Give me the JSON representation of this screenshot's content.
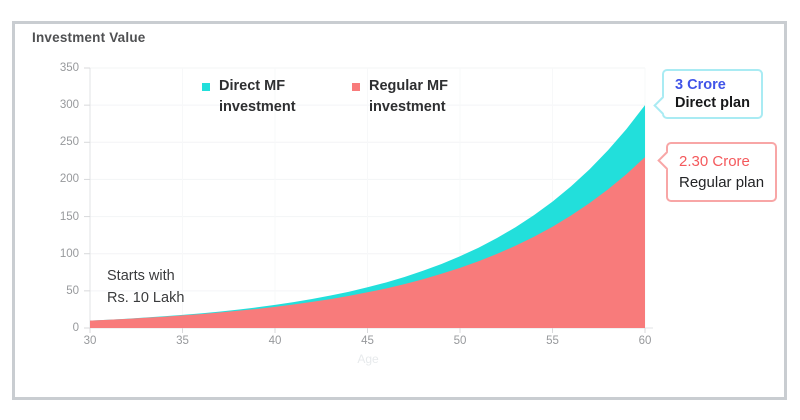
{
  "title": "Investment Value",
  "legend": {
    "items": [
      {
        "label": "Direct MF investment",
        "color": "#22dfdb"
      },
      {
        "label": "Regular MF investment",
        "color": "#f87b7b"
      }
    ]
  },
  "annotation": {
    "line1": "Starts with",
    "line2": "Rs. 10 Lakh"
  },
  "callouts": [
    {
      "value": "3 Crore",
      "plan": "Direct plan",
      "value_color": "#4154e8",
      "border_color": "#a9ebf3"
    },
    {
      "value": "2.30 Crore",
      "plan": "Regular plan",
      "value_color": "#f4595c",
      "border_color": "#f8a6a6"
    }
  ],
  "chart_data": {
    "type": "area",
    "title": "Investment Value",
    "xlabel": "Age",
    "ylabel": "",
    "xlim": [
      30,
      60
    ],
    "ylim": [
      0,
      350
    ],
    "x_ticks": [
      30,
      35,
      40,
      45,
      50,
      55,
      60
    ],
    "y_ticks": [
      0,
      50,
      100,
      150,
      200,
      250,
      300,
      350
    ],
    "grid": "faint",
    "legend_position": "top",
    "x": [
      30,
      31,
      32,
      33,
      34,
      35,
      36,
      37,
      38,
      39,
      40,
      41,
      42,
      43,
      44,
      45,
      46,
      47,
      48,
      49,
      50,
      51,
      52,
      53,
      54,
      55,
      56,
      57,
      58,
      59,
      60
    ],
    "series": [
      {
        "name": "Direct MF investment",
        "color": "#22dfdb",
        "final_label": "3 Crore",
        "values": [
          10,
          11.2,
          12.5,
          14.1,
          15.7,
          17.6,
          19.7,
          22.1,
          24.8,
          27.7,
          31.1,
          34.8,
          39.0,
          43.7,
          48.9,
          54.8,
          61.3,
          68.7,
          77.0,
          86.2,
          96.6,
          108.1,
          121.1,
          135.7,
          152.0,
          170.2,
          190.6,
          213.5,
          239.2,
          267.9,
          300
        ]
      },
      {
        "name": "Regular MF investment",
        "color": "#f87b7b",
        "final_label": "2.30 Crore",
        "values": [
          10,
          11.1,
          12.3,
          13.7,
          15.2,
          16.9,
          18.7,
          20.8,
          23.1,
          25.6,
          28.4,
          31.6,
          35.1,
          38.9,
          43.2,
          48.0,
          53.2,
          59.1,
          65.6,
          72.9,
          80.9,
          89.8,
          99.7,
          110.7,
          122.9,
          136.4,
          151.4,
          168.1,
          186.6,
          207.2,
          230
        ]
      }
    ],
    "start_annotation": "Starts with Rs. 10 Lakh",
    "units": "Rs. Lakh"
  }
}
